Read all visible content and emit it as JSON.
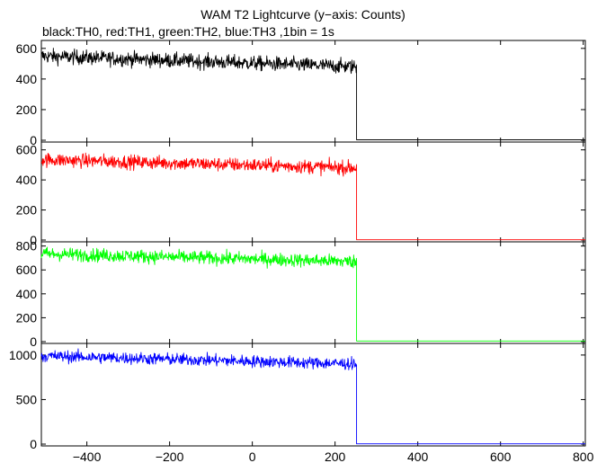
{
  "chart_data": {
    "type": "line",
    "title": "WAM T2 Lightcurve (y−axis: Counts)",
    "subtitle": "black:TH0, red:TH1, green:TH2, blue:TH3 ,1bin = 1s",
    "xlabel": "",
    "ylabel": "",
    "xlim": [
      -510,
      805
    ],
    "x_ticks": [
      -400,
      -200,
      0,
      200,
      400,
      600,
      800
    ],
    "x_tick_labels": [
      "−400",
      "−200",
      "0",
      "200",
      "400",
      "600",
      "800"
    ],
    "grid": false,
    "legend": "none",
    "step": 252,
    "panels": [
      {
        "name": "TH0",
        "color": "#000000",
        "ylim": [
          0,
          640
        ],
        "y_ticks": [
          0,
          200,
          400,
          600
        ],
        "y_tick_labels": [
          "0",
          "200",
          "400",
          "600"
        ],
        "before_start": 550,
        "before_end": 480,
        "noise": 24,
        "after": 3
      },
      {
        "name": "TH1",
        "color": "#ff0000",
        "ylim": [
          0,
          640
        ],
        "y_ticks": [
          0,
          200,
          400,
          600
        ],
        "y_tick_labels": [
          "0",
          "200",
          "400",
          "600"
        ],
        "before_start": 535,
        "before_end": 480,
        "noise": 23,
        "after": 2
      },
      {
        "name": "TH2",
        "color": "#00ff00",
        "ylim": [
          0,
          820
        ],
        "y_ticks": [
          0,
          200,
          400,
          600,
          800
        ],
        "y_tick_labels": [
          "0",
          "200",
          "400",
          "600",
          "800"
        ],
        "before_start": 735,
        "before_end": 670,
        "noise": 28,
        "after": 5
      },
      {
        "name": "TH3",
        "color": "#0000ff",
        "ylim": [
          0,
          1110
        ],
        "y_ticks": [
          0,
          500,
          1000
        ],
        "y_tick_labels": [
          "0",
          "500",
          "1000"
        ],
        "before_start": 990,
        "before_end": 900,
        "noise": 34,
        "after": 3
      }
    ]
  }
}
